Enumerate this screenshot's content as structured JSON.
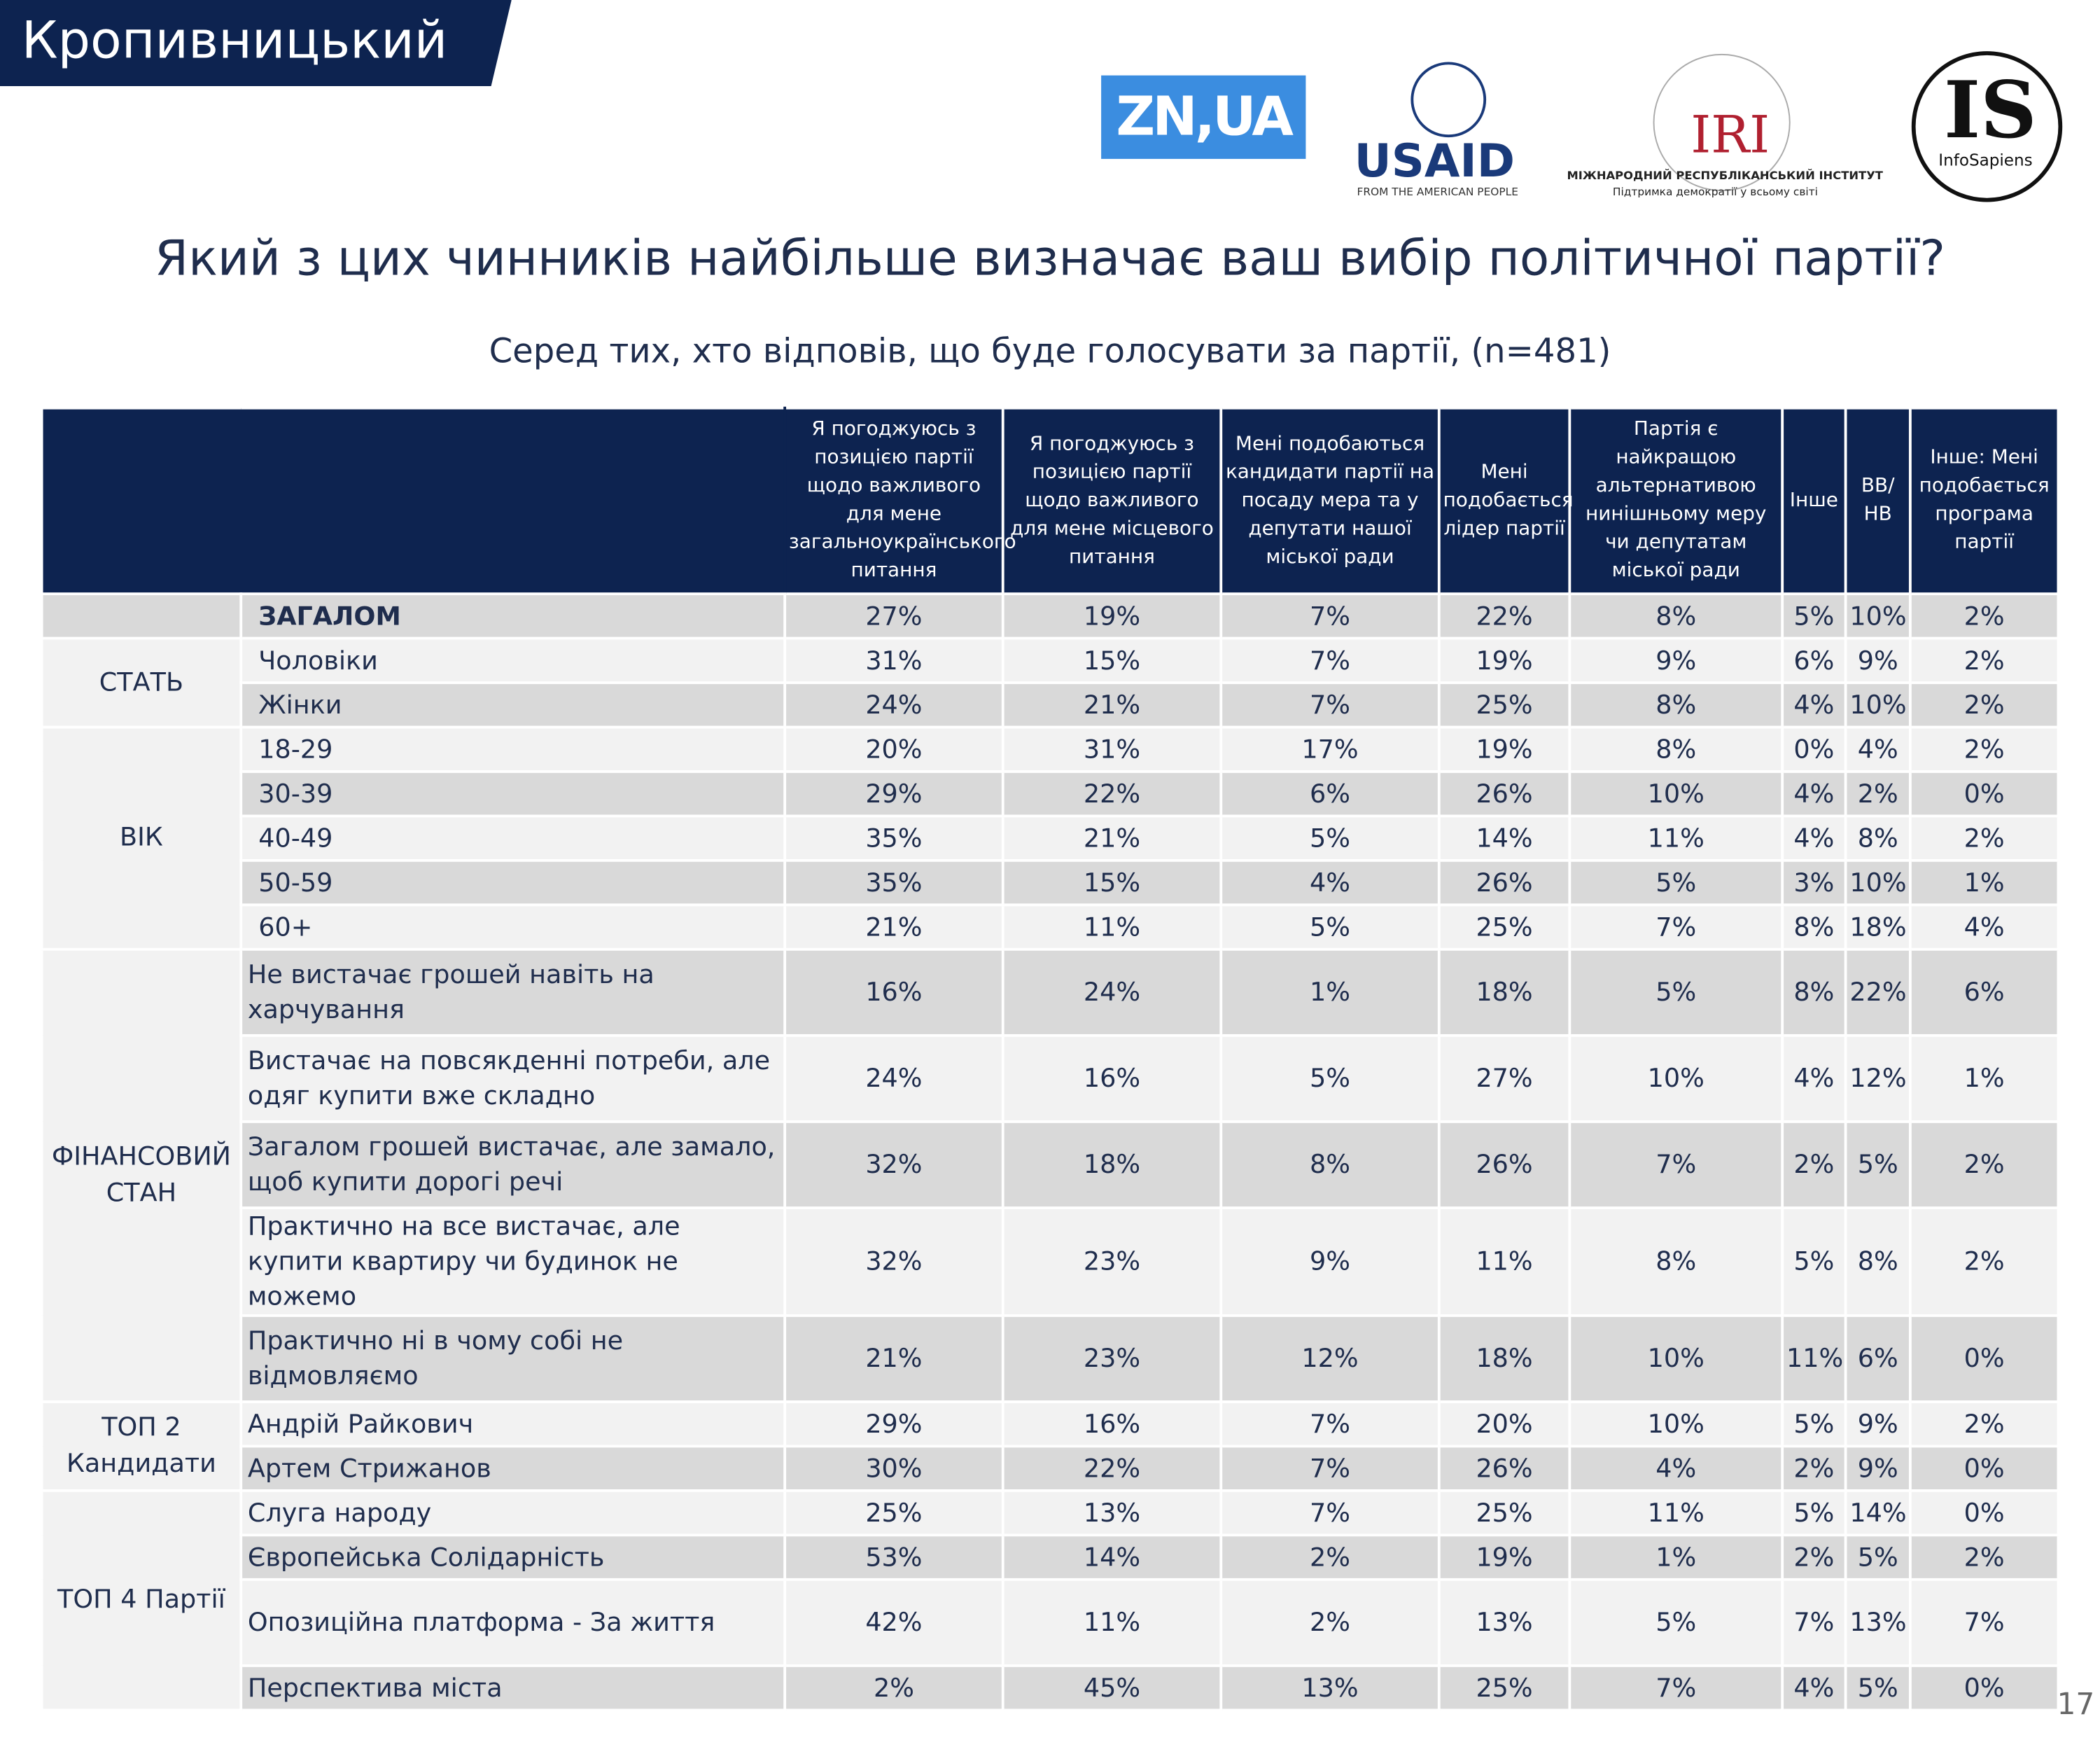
{
  "header": {
    "region": "Кропивницький",
    "logos": {
      "zn": "ZN,UA",
      "usaid": "USAID",
      "usaid_sub": "FROM THE AMERICAN PEOPLE",
      "iri": "IRI",
      "iri_sub1": "МІЖНАРОДНИЙ РЕСПУБЛІКАНСЬКИЙ ІНСТИТУТ",
      "iri_sub2": "Підтримка демократії у всьому світі",
      "is": "IS",
      "is_sub": "InfoSapiens"
    }
  },
  "title": "Який з цих чинників найбільше визначає ваш вибір політичної партії?",
  "subtitle": "Серед тих, хто відповів, що буде голосувати за партії, (n=481)",
  "table": {
    "columns": [
      "Я погоджуюсь з позицією партії щодо важливого для мене загальноукраїнського питання",
      "Я погоджуюсь з позицією партії щодо важливого для мене місцевого питання",
      "Мені подобаються кандидати партії на посаду мера та у депутати нашої міської ради",
      "Мені подобається лідер партії",
      "Партія є найкращою альтернативою нинішньому меру чи депутатам міської ради",
      "Інше",
      "ВВ/ НВ",
      "Інше: Мені подобається програма партії"
    ],
    "sections": [
      {
        "rows": [
          {
            "label": "ЗАГАЛОМ",
            "values": [
              "27%",
              "19%",
              "7%",
              "22%",
              "8%",
              "5%",
              "10%",
              "2%"
            ]
          }
        ]
      },
      {
        "label": "СТАТЬ",
        "rows": [
          {
            "label": "Чоловіки",
            "values": [
              "31%",
              "15%",
              "7%",
              "19%",
              "9%",
              "6%",
              "9%",
              "2%"
            ]
          },
          {
            "label": "Жінки",
            "values": [
              "24%",
              "21%",
              "7%",
              "25%",
              "8%",
              "4%",
              "10%",
              "2%"
            ]
          }
        ]
      },
      {
        "label": "ВІК",
        "rows": [
          {
            "label": "18-29",
            "values": [
              "20%",
              "31%",
              "17%",
              "19%",
              "8%",
              "0%",
              "4%",
              "2%"
            ]
          },
          {
            "label": "30-39",
            "values": [
              "29%",
              "22%",
              "6%",
              "26%",
              "10%",
              "4%",
              "2%",
              "0%"
            ]
          },
          {
            "label": "40-49",
            "values": [
              "35%",
              "21%",
              "5%",
              "14%",
              "11%",
              "4%",
              "8%",
              "2%"
            ]
          },
          {
            "label": "50-59",
            "values": [
              "35%",
              "15%",
              "4%",
              "26%",
              "5%",
              "3%",
              "10%",
              "1%"
            ]
          },
          {
            "label": "60+",
            "values": [
              "21%",
              "11%",
              "5%",
              "25%",
              "7%",
              "8%",
              "18%",
              "4%"
            ]
          }
        ]
      },
      {
        "label": "ФІНАНСОВИЙ СТАН",
        "rows": [
          {
            "label": "Не вистачає грошей навіть на харчування",
            "values": [
              "16%",
              "24%",
              "1%",
              "18%",
              "5%",
              "8%",
              "22%",
              "6%"
            ]
          },
          {
            "label": "Вистачає на повсякденні потреби, але одяг купити вже складно",
            "values": [
              "24%",
              "16%",
              "5%",
              "27%",
              "10%",
              "4%",
              "12%",
              "1%"
            ]
          },
          {
            "label": "Загалом грошей вистачає, але замало, щоб купити дорогі речі",
            "values": [
              "32%",
              "18%",
              "8%",
              "26%",
              "7%",
              "2%",
              "5%",
              "2%"
            ]
          },
          {
            "label": "Практично на все вистачає, але купити квартиру чи будинок не можемо",
            "values": [
              "32%",
              "23%",
              "9%",
              "11%",
              "8%",
              "5%",
              "8%",
              "2%"
            ]
          },
          {
            "label": "Практично ні в чому собі не відмовляємо",
            "values": [
              "21%",
              "23%",
              "12%",
              "18%",
              "10%",
              "11%",
              "6%",
              "0%"
            ]
          }
        ]
      },
      {
        "label": "ТОП 2 Кандидати",
        "rows": [
          {
            "label": "Андрій Райкович",
            "values": [
              "29%",
              "16%",
              "7%",
              "20%",
              "10%",
              "5%",
              "9%",
              "2%"
            ]
          },
          {
            "label": "Артем Стрижанов",
            "values": [
              "30%",
              "22%",
              "7%",
              "26%",
              "4%",
              "2%",
              "9%",
              "0%"
            ]
          }
        ]
      },
      {
        "label": "ТОП 4 Партії",
        "rows": [
          {
            "label": "Слуга народу",
            "values": [
              "25%",
              "13%",
              "7%",
              "25%",
              "11%",
              "5%",
              "14%",
              "0%"
            ]
          },
          {
            "label": "Європейська Солідарність",
            "values": [
              "53%",
              "14%",
              "2%",
              "19%",
              "1%",
              "2%",
              "5%",
              "2%"
            ]
          },
          {
            "label": "Опозиційна платформа - За життя",
            "values": [
              "42%",
              "11%",
              "2%",
              "13%",
              "5%",
              "7%",
              "13%",
              "7%"
            ]
          },
          {
            "label": "Перспектива міста",
            "values": [
              "2%",
              "45%",
              "13%",
              "25%",
              "7%",
              "4%",
              "5%",
              "0%"
            ]
          }
        ]
      }
    ]
  },
  "page_number": "17"
}
